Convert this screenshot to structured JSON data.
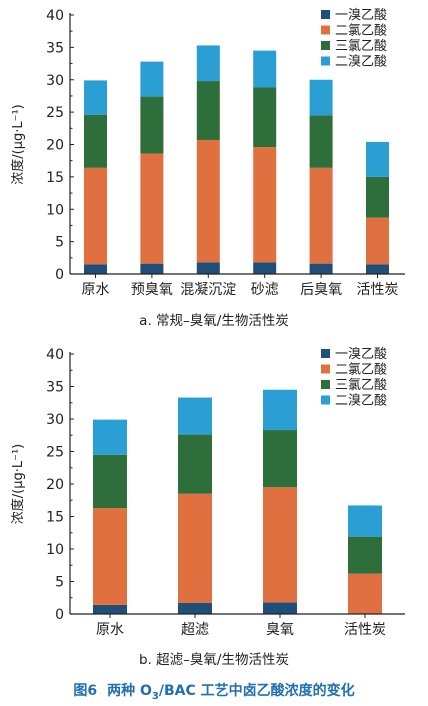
{
  "series_names": [
    "一溴乙酸",
    "二氯乙酸",
    "三氯乙酸",
    "二溴乙酸"
  ],
  "colors": [
    "#1f4e79",
    "#e07040",
    "#2e6e3b",
    "#2b9fd4"
  ],
  "chart_data": [
    {
      "type": "bar",
      "stacked": true,
      "caption": "a. 常规–臭氧/生物活性炭",
      "ylabel": "浓度/(μg·L⁻¹)",
      "ylim": [
        0,
        40
      ],
      "yticks": [
        0,
        5,
        10,
        15,
        20,
        25,
        30,
        35,
        40
      ],
      "legend_position": "top-right",
      "grid": false,
      "categories": [
        "原水",
        "预臭氧",
        "混凝沉淀",
        "砂滤",
        "后臭氧",
        "活性炭"
      ],
      "series": [
        {
          "name": "一溴乙酸",
          "values": [
            1.5,
            1.6,
            1.8,
            1.8,
            1.6,
            1.5
          ]
        },
        {
          "name": "二氯乙酸",
          "values": [
            14.9,
            17.0,
            18.9,
            17.8,
            14.8,
            7.2
          ]
        },
        {
          "name": "三氯乙酸",
          "values": [
            8.2,
            8.8,
            9.1,
            9.2,
            8.1,
            6.3
          ]
        },
        {
          "name": "二溴乙酸",
          "values": [
            5.3,
            5.4,
            5.5,
            5.7,
            5.5,
            5.4
          ]
        }
      ]
    },
    {
      "type": "bar",
      "stacked": true,
      "caption": "b. 超滤–臭氧/生物活性炭",
      "ylabel": "浓度/(μg·L⁻¹)",
      "ylim": [
        0,
        40
      ],
      "yticks": [
        0,
        5,
        10,
        15,
        20,
        25,
        30,
        35,
        40
      ],
      "legend_position": "top-right",
      "grid": false,
      "categories": [
        "原水",
        "超滤",
        "臭氧",
        "活性炭"
      ],
      "series": [
        {
          "name": "一溴乙酸",
          "values": [
            1.4,
            1.7,
            1.8,
            0
          ]
        },
        {
          "name": "二氯乙酸",
          "values": [
            14.9,
            16.8,
            17.7,
            6.2
          ]
        },
        {
          "name": "三氯乙酸",
          "values": [
            8.2,
            9.1,
            8.8,
            5.7
          ]
        },
        {
          "name": "二溴乙酸",
          "values": [
            5.4,
            5.7,
            6.2,
            4.8
          ]
        }
      ]
    }
  ],
  "figure_caption": {
    "number": "图6",
    "title_parts": [
      "两种 O",
      "3",
      "/BAC 工艺中卤乙酸浓度的变化"
    ]
  }
}
